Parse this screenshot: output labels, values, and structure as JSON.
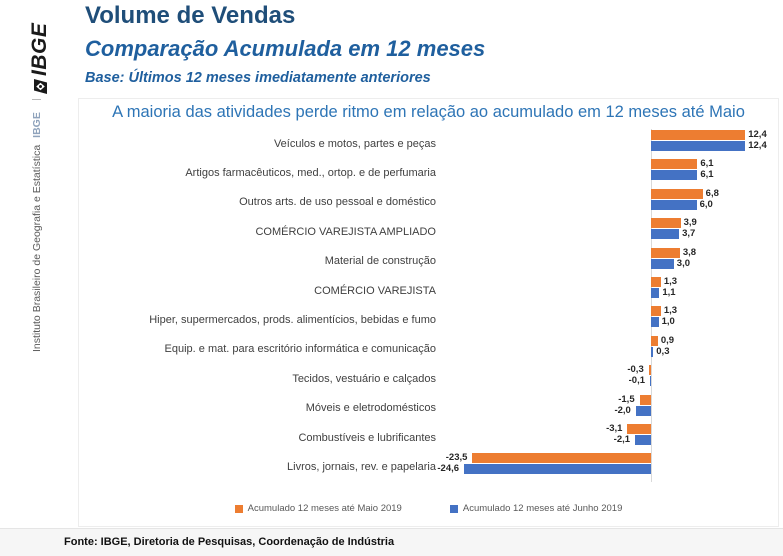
{
  "sidebar": {
    "logo_text": "IBGE",
    "separator": "|",
    "org_abbr": "IBGE",
    "org_name": "Instituto Brasileiro de Geografia e Estatística"
  },
  "header": {
    "title": "Volume de Vendas",
    "subtitle": "Comparação Acumulada em 12 meses",
    "base_note": "Base: Últimos 12 meses imediatamente anteriores"
  },
  "chart_data": {
    "type": "bar",
    "orientation": "horizontal",
    "title": "A maioria das atividades perde ritmo em relação ao acumulado em 12 meses até Maio",
    "categories": [
      "Veículos e motos, partes e peças",
      "Artigos farmacêuticos, med., ortop. e de perfumaria",
      "Outros arts. de uso pessoal e doméstico",
      "COMÉRCIO VAREJISTA AMPLIADO",
      "Material de construção",
      "COMÉRCIO VAREJISTA",
      "Hiper, supermercados, prods.  alimentícios, bebidas e fumo",
      "Equip. e mat. para escritório informática e comunicação",
      "Tecidos, vestuário e calçados",
      "Móveis e eletrodomésticos",
      "Combustíveis e lubrificantes",
      "Livros, jornais, rev. e papelaria"
    ],
    "series": [
      {
        "name": "Acumulado 12 meses até Maio 2019",
        "color": "#ED7D31",
        "values": [
          12.4,
          6.1,
          6.8,
          3.9,
          3.8,
          1.3,
          1.3,
          0.9,
          -0.3,
          -1.5,
          -3.1,
          -23.5
        ]
      },
      {
        "name": "Acumulado 12 meses até  Junho 2019",
        "color": "#4472C4",
        "values": [
          12.4,
          6.1,
          6.0,
          3.7,
          3.0,
          1.1,
          1.0,
          0.3,
          -0.1,
          -2.0,
          -2.1,
          -24.6
        ]
      }
    ],
    "value_labels": true,
    "decimal_separator": ",",
    "xlim": [
      -26,
      14
    ],
    "grid": false,
    "legend_position": "bottom"
  },
  "footer": {
    "source": "Fonte: IBGE, Diretoria de Pesquisas, Coordenação de Indústria"
  },
  "colors": {
    "series_maio": "#ED7D31",
    "series_junho": "#4472C4",
    "title_dark_blue": "#1F4E79",
    "subtitle_blue": "#1F5F9E",
    "chart_title_blue": "#2E75B6"
  }
}
